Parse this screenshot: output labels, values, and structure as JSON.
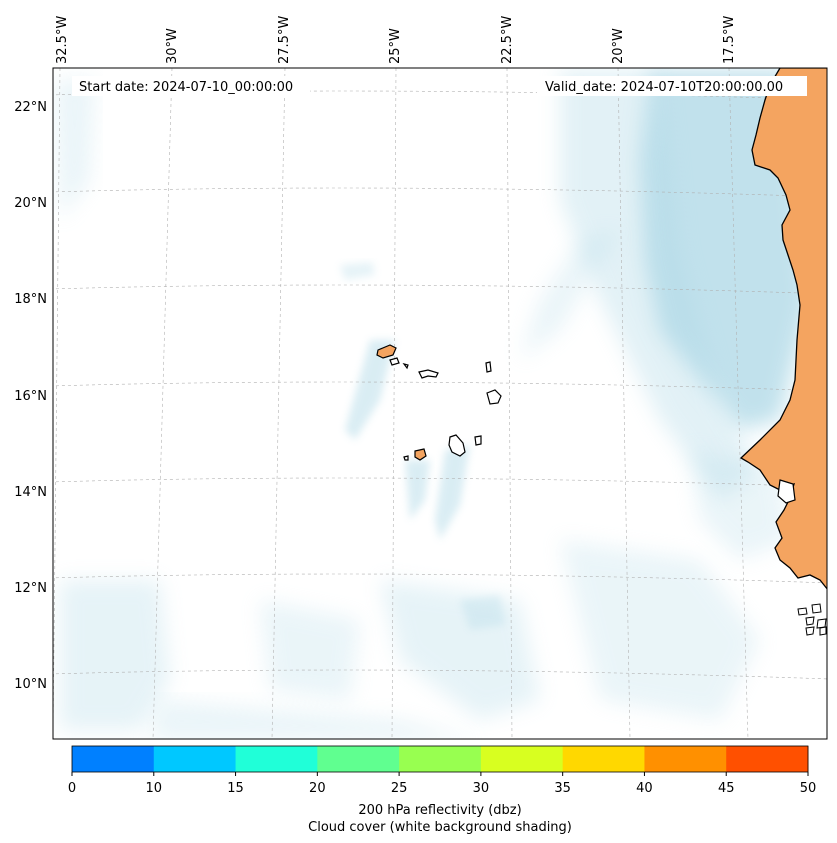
{
  "map": {
    "projection": "lambert-conformal",
    "lon_ticks": [
      "32.5°W",
      "30°W",
      "27.5°W",
      "25°W",
      "22.5°W",
      "20°W",
      "17.5°W"
    ],
    "lat_ticks": [
      "22°N",
      "20°N",
      "18°N",
      "16°N",
      "14°N",
      "12°N",
      "10°N"
    ],
    "start_date": "Start date: 2024-07-10_00:00:00",
    "valid_date": "Valid_date: 2024-07-10T20:00:00.00",
    "land_color": "#f4a460",
    "cloud_color": "#add8e6"
  },
  "colorbar": {
    "ticks": [
      "0",
      "10",
      "15",
      "20",
      "25",
      "30",
      "35",
      "40",
      "45",
      "50"
    ],
    "colors": [
      "#0080ff",
      "#00c8ff",
      "#20ffd8",
      "#60ff90",
      "#98ff50",
      "#d8ff20",
      "#ffd800",
      "#ff9000",
      "#ff5000"
    ],
    "label_line1": "200 hPa reflectivity (dbz)",
    "label_line2": "Cloud cover (white background shading)"
  }
}
